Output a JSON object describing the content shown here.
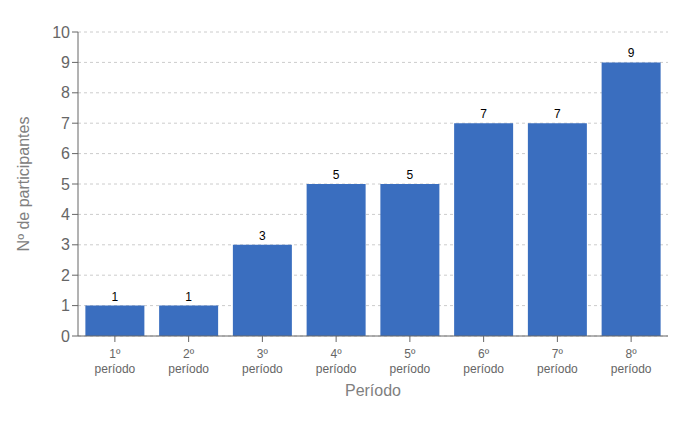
{
  "chart_data": {
    "type": "bar",
    "categories": [
      "1º\nperíodo",
      "2º\nperíodo",
      "3º\nperíodo",
      "4º\nperíodo",
      "5º\nperíodo",
      "6º\nperíodo",
      "7º\nperíodo",
      "8º\nperíodo"
    ],
    "values": [
      1,
      1,
      3,
      5,
      5,
      7,
      7,
      9
    ],
    "color": "#3A6EBF",
    "xlabel": "Período",
    "ylabel": "Nº de participantes",
    "ylim": [
      0,
      10
    ],
    "yticks": [
      0,
      1,
      2,
      3,
      4,
      5,
      6,
      7,
      8,
      9,
      10
    ],
    "grid": true,
    "data_labels": true
  }
}
